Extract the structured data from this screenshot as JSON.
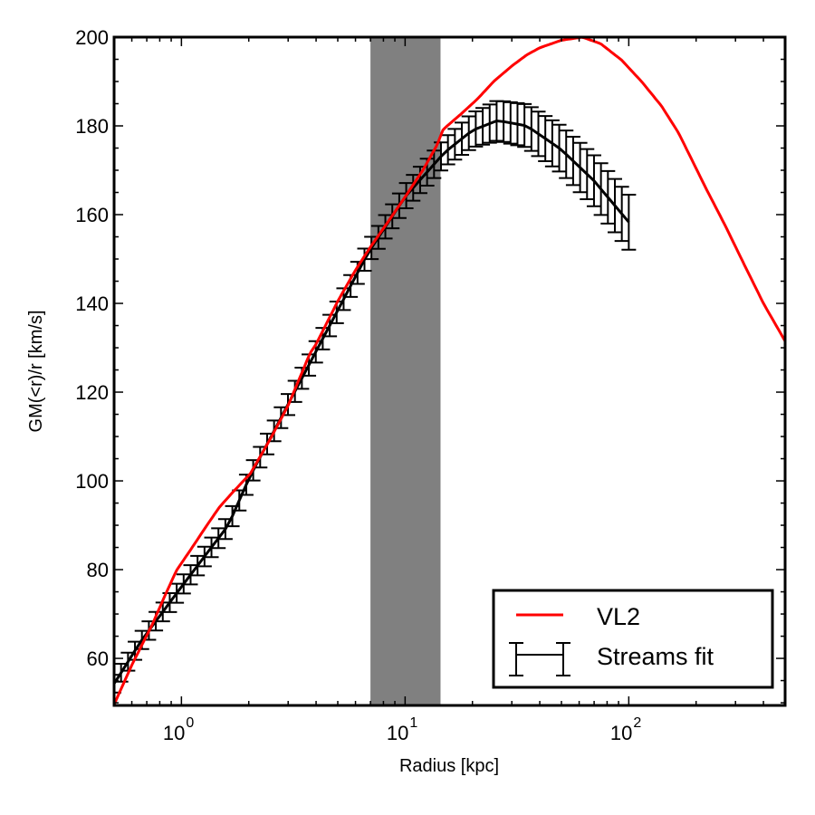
{
  "chart_data": {
    "type": "line",
    "title": "",
    "xlabel": "Radius [kpc]",
    "ylabel": "GM(<r)/r [km/s]",
    "xscale": "log",
    "xlim": [
      0.5,
      500
    ],
    "ylim": [
      49.4,
      200
    ],
    "grid": false,
    "x_major_ticks": [
      {
        "value": 1,
        "base": "10",
        "exp": "0"
      },
      {
        "value": 10,
        "base": "10",
        "exp": "1"
      },
      {
        "value": 100,
        "base": "10",
        "exp": "2"
      }
    ],
    "y_major_ticks": [
      60,
      80,
      100,
      120,
      140,
      160,
      180,
      200
    ],
    "y_minor_step": 5,
    "shaded_band": {
      "x_from": 7.0,
      "x_to": 14.4,
      "color": "#808080"
    },
    "legend": {
      "placement": "lower-right",
      "entries": [
        {
          "label": "VL2",
          "style": "line",
          "color": "#ff0000"
        },
        {
          "label": "Streams fit",
          "style": "errorbar",
          "color": "#000000"
        }
      ]
    },
    "series": [
      {
        "name": "VL2",
        "color": "#ff0000",
        "points": [
          [
            0.5,
            49.6
          ],
          [
            0.6,
            58.5
          ],
          [
            0.74,
            67.6
          ],
          [
            0.85,
            74.5
          ],
          [
            0.95,
            79.8
          ],
          [
            1.1,
            84.5
          ],
          [
            1.3,
            90.0
          ],
          [
            1.48,
            94.1
          ],
          [
            1.7,
            97.5
          ],
          [
            2.03,
            101.6
          ],
          [
            2.5,
            109.5
          ],
          [
            3.0,
            117.0
          ],
          [
            3.76,
            128.8
          ],
          [
            4.0,
            130.8
          ],
          [
            5.0,
            140.5
          ],
          [
            6.0,
            147.5
          ],
          [
            7.0,
            152.7
          ],
          [
            8.5,
            158.8
          ],
          [
            10.0,
            164.0
          ],
          [
            12.0,
            170.0
          ],
          [
            13.9,
            175.7
          ],
          [
            14.8,
            179.2
          ],
          [
            17.8,
            182.7
          ],
          [
            21.0,
            186.0
          ],
          [
            25.0,
            190.1
          ],
          [
            30.0,
            193.5
          ],
          [
            35.0,
            196.0
          ],
          [
            40.0,
            197.6
          ],
          [
            50.0,
            199.3
          ],
          [
            62.0,
            200.0
          ],
          [
            75.0,
            198.5
          ],
          [
            93.0,
            194.8
          ],
          [
            114.0,
            190.0
          ],
          [
            140.0,
            184.5
          ],
          [
            167.0,
            178.4
          ],
          [
            220.0,
            166.2
          ],
          [
            270.0,
            157.5
          ],
          [
            330.0,
            148.5
          ],
          [
            400.0,
            140.0
          ],
          [
            500.0,
            131.5
          ]
        ]
      },
      {
        "name": "Streams fit",
        "color": "#000000",
        "type": "errorbar",
        "n_points": 75,
        "x_range": [
          0.5,
          100
        ],
        "spacing": "log",
        "center_curve": [
          [
            0.5,
            54.3
          ],
          [
            0.66,
            63.9
          ],
          [
            1.02,
            76.7
          ],
          [
            1.62,
            90.0
          ],
          [
            2.02,
            100.9
          ],
          [
            3.65,
            125.4
          ],
          [
            6.8,
            151.2
          ],
          [
            10.0,
            164.0
          ],
          [
            15.0,
            174.0
          ],
          [
            20.0,
            179.0
          ],
          [
            25.9,
            181.2
          ],
          [
            35.0,
            180.0
          ],
          [
            49.8,
            174.7
          ],
          [
            70.0,
            167.6
          ],
          [
            100.0,
            158.3
          ]
        ],
        "error_curve": [
          [
            0.5,
            2.0
          ],
          [
            2.0,
            2.3
          ],
          [
            7.0,
            2.5
          ],
          [
            15.0,
            3.2
          ],
          [
            25.9,
            4.5
          ],
          [
            50.0,
            5.3
          ],
          [
            100.0,
            6.2
          ]
        ]
      }
    ]
  }
}
